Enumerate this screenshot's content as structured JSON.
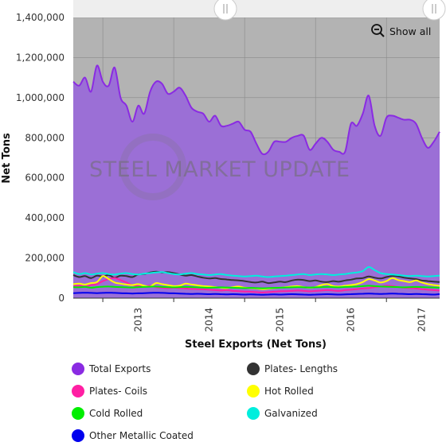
{
  "chart_data": {
    "type": "area",
    "xlabel": "Steel Exports (Net Tons)",
    "ylabel": "Net Tons",
    "ylim": [
      0,
      1400000
    ],
    "yticks": [
      "0",
      "200,000",
      "400,000",
      "600,000",
      "800,000",
      "1,000,000",
      "1,200,000",
      "1,400,000"
    ],
    "xticks": [
      "2013",
      "2014",
      "2015",
      "2016",
      "2017"
    ],
    "grid": true,
    "legend_position": "bottom",
    "show_all_label": "Show all",
    "watermark": "STEEL MARKET UPDATE",
    "x": [
      "2012-08",
      "2012-09",
      "2012-10",
      "2012-11",
      "2012-12",
      "2013-01",
      "2013-02",
      "2013-03",
      "2013-04",
      "2013-05",
      "2013-06",
      "2013-07",
      "2013-08",
      "2013-09",
      "2013-10",
      "2013-11",
      "2013-12",
      "2014-01",
      "2014-02",
      "2014-03",
      "2014-04",
      "2014-05",
      "2014-06",
      "2014-07",
      "2014-08",
      "2014-09",
      "2014-10",
      "2014-11",
      "2014-12",
      "2015-01",
      "2015-02",
      "2015-03",
      "2015-04",
      "2015-05",
      "2015-06",
      "2015-07",
      "2015-08",
      "2015-09",
      "2015-10",
      "2015-11",
      "2015-12",
      "2016-01",
      "2016-02",
      "2016-03",
      "2016-04",
      "2016-05",
      "2016-06",
      "2016-07",
      "2016-08",
      "2016-09",
      "2016-10",
      "2016-11",
      "2016-12",
      "2017-01",
      "2017-02",
      "2017-03",
      "2017-04",
      "2017-05",
      "2017-06",
      "2017-07",
      "2017-08",
      "2017-09",
      "2017-10"
    ],
    "series": [
      {
        "name": "Total Exports",
        "color": "#8a2be2",
        "values": [
          1080000,
          1060000,
          1100000,
          1030000,
          1160000,
          1080000,
          1060000,
          1150000,
          1000000,
          960000,
          880000,
          960000,
          920000,
          1030000,
          1080000,
          1070000,
          1020000,
          1030000,
          1050000,
          1010000,
          950000,
          930000,
          920000,
          880000,
          910000,
          860000,
          860000,
          870000,
          880000,
          840000,
          830000,
          770000,
          720000,
          730000,
          780000,
          780000,
          780000,
          800000,
          810000,
          810000,
          740000,
          770000,
          800000,
          780000,
          740000,
          730000,
          730000,
          870000,
          860000,
          920000,
          1010000,
          860000,
          810000,
          900000,
          910000,
          900000,
          890000,
          890000,
          870000,
          800000,
          750000,
          780000,
          830000
        ]
      },
      {
        "name": "Plates- Lengths",
        "color": "#333333",
        "values": [
          115000,
          105000,
          110000,
          100000,
          112000,
          108000,
          115000,
          102000,
          112000,
          110000,
          105000,
          118000,
          120000,
          128000,
          132000,
          128000,
          130000,
          125000,
          118000,
          112000,
          115000,
          108000,
          102000,
          98000,
          100000,
          95000,
          93000,
          90000,
          88000,
          85000,
          80000,
          78000,
          82000,
          75000,
          78000,
          82000,
          80000,
          88000,
          92000,
          90000,
          85000,
          88000,
          82000,
          80000,
          85000,
          82000,
          88000,
          92000,
          98000,
          100000,
          108000,
          102000,
          98000,
          105000,
          110000,
          108000,
          102000,
          98000,
          95000,
          88000,
          85000,
          82000,
          80000
        ]
      },
      {
        "name": "Plates- Coils",
        "color": "#ff1fa3",
        "values": [
          60000,
          62000,
          58000,
          65000,
          70000,
          85000,
          95000,
          100000,
          90000,
          78000,
          65000,
          60000,
          58000,
          62000,
          55000,
          52000,
          50000,
          52000,
          50000,
          48000,
          46000,
          45000,
          44000,
          42000,
          40000,
          38000,
          40000,
          36000,
          35000,
          33000,
          32000,
          30000,
          28000,
          30000,
          32000,
          34000,
          35000,
          36000,
          38000,
          36000,
          34000,
          36000,
          38000,
          40000,
          38000,
          36000,
          40000,
          42000,
          45000,
          48000,
          50000,
          55000,
          58000,
          62000,
          60000,
          55000,
          52000,
          50000,
          48000,
          45000,
          42000,
          40000,
          38000
        ]
      },
      {
        "name": "Hot Rolled",
        "color": "#ffff00",
        "values": [
          70000,
          72000,
          68000,
          75000,
          80000,
          110000,
          95000,
          78000,
          72000,
          68000,
          65000,
          70000,
          62000,
          58000,
          75000,
          70000,
          65000,
          60000,
          62000,
          72000,
          68000,
          64000,
          60000,
          58000,
          55000,
          52000,
          50000,
          55000,
          58000,
          52000,
          50000,
          48000,
          45000,
          47000,
          50000,
          52000,
          55000,
          58000,
          60000,
          55000,
          52000,
          55000,
          65000,
          70000,
          60000,
          58000,
          62000,
          65000,
          70000,
          80000,
          95000,
          88000,
          78000,
          85000,
          100000,
          90000,
          85000,
          80000,
          88000,
          78000,
          70000,
          65000,
          62000
        ]
      },
      {
        "name": "Cold Rolled",
        "color": "#00ee00",
        "values": [
          55000,
          54000,
          56000,
          52000,
          55000,
          57000,
          58000,
          56000,
          55000,
          54000,
          53000,
          55000,
          56000,
          57000,
          58000,
          56000,
          55000,
          54000,
          55000,
          56000,
          55000,
          54000,
          53000,
          52000,
          53000,
          54000,
          53000,
          52000,
          51000,
          50000,
          51000,
          50000,
          49000,
          50000,
          51000,
          52000,
          53000,
          54000,
          55000,
          54000,
          53000,
          54000,
          55000,
          56000,
          55000,
          54000,
          56000,
          57000,
          58000,
          60000,
          62000,
          60000,
          58000,
          57000,
          56000,
          55000,
          54000,
          55000,
          56000,
          55000,
          54000,
          53000,
          52000
        ]
      },
      {
        "name": "Galvanized",
        "color": "#00eedd",
        "values": [
          130000,
          120000,
          125000,
          118000,
          122000,
          125000,
          120000,
          118000,
          122000,
          125000,
          120000,
          118000,
          122000,
          125000,
          128000,
          130000,
          125000,
          120000,
          118000,
          122000,
          125000,
          120000,
          118000,
          115000,
          118000,
          120000,
          115000,
          112000,
          110000,
          108000,
          110000,
          112000,
          108000,
          105000,
          108000,
          110000,
          112000,
          115000,
          118000,
          120000,
          115000,
          118000,
          120000,
          118000,
          115000,
          118000,
          120000,
          125000,
          128000,
          135000,
          155000,
          140000,
          125000,
          120000,
          118000,
          115000,
          112000,
          110000,
          112000,
          110000,
          108000,
          110000,
          112000
        ]
      },
      {
        "name": "Other Metallic Coated",
        "color": "#0000ee",
        "values": [
          25000,
          26000,
          27000,
          26000,
          25000,
          26000,
          27000,
          26000,
          25000,
          24000,
          23000,
          24000,
          25000,
          26000,
          27000,
          26000,
          25000,
          24000,
          23000,
          22000,
          21000,
          22000,
          21000,
          20000,
          21000,
          20000,
          19000,
          20000,
          19000,
          18000,
          19000,
          18000,
          17000,
          18000,
          19000,
          18000,
          19000,
          20000,
          19000,
          18000,
          17000,
          18000,
          19000,
          20000,
          19000,
          18000,
          19000,
          20000,
          21000,
          22000,
          23000,
          22000,
          21000,
          22000,
          23000,
          22000,
          21000,
          20000,
          21000,
          20000,
          19000,
          18000,
          20000
        ]
      }
    ]
  }
}
